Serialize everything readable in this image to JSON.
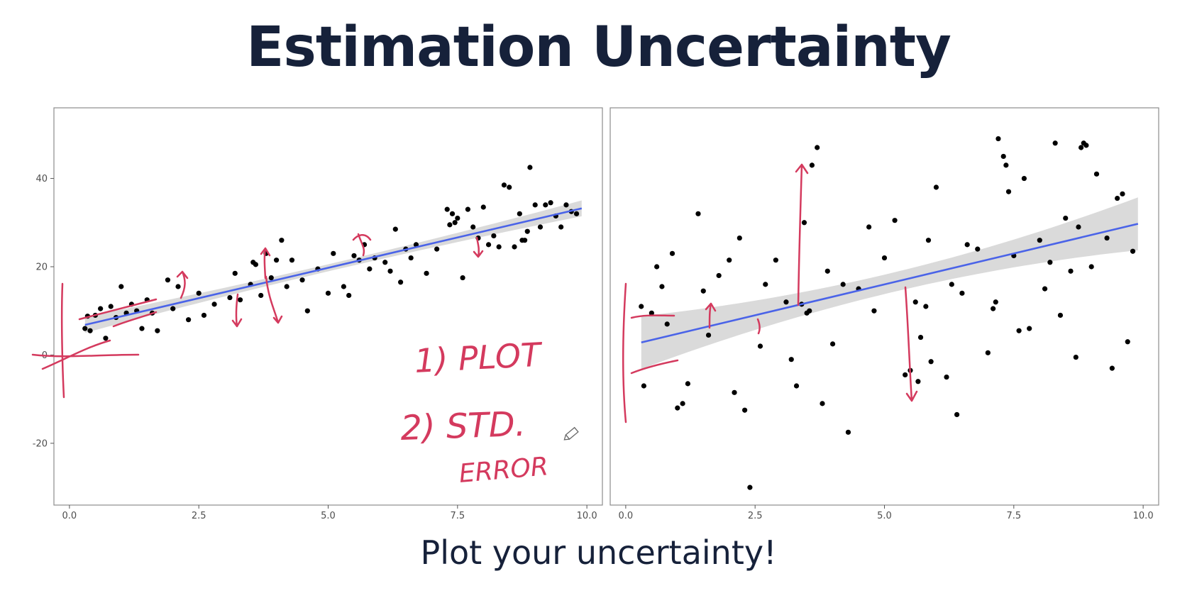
{
  "slide": {
    "title": "Estimation Uncertainty",
    "subtitle": "Plot your uncertainty!"
  },
  "colors": {
    "title": "#16213a",
    "fit_line": "#4a63e8",
    "confidence_band": "#d3d3d3",
    "points": "#000000",
    "ink": "#d43a5e",
    "panel_border": "#8c8c8c"
  },
  "annotations": {
    "ink_step1": "1) PLOT",
    "ink_step2": "2) STD.",
    "ink_step2b": "ERROR"
  },
  "chart_data": [
    {
      "type": "scatter",
      "title": "",
      "xlabel": "",
      "ylabel": "",
      "xlim": [
        -0.3,
        10.3
      ],
      "ylim": [
        -34,
        56
      ],
      "x_ticks": [
        0,
        2.5,
        5,
        7.5,
        10
      ],
      "x_tick_labels": [
        "0.0",
        "2.5",
        "5.0",
        "7.5",
        "10.0"
      ],
      "y_ticks": [
        -20,
        0,
        20,
        40
      ],
      "y_tick_labels": [
        "-20",
        "0",
        "20",
        "40"
      ],
      "grid": false,
      "fit": {
        "intercept": 6.0,
        "slope": 2.75,
        "x_range": [
          0.3,
          9.9
        ],
        "se_low": 0.8,
        "se_high": 1.8
      },
      "points": {
        "x": [
          0.3,
          0.35,
          0.4,
          0.5,
          0.6,
          0.7,
          0.8,
          0.9,
          1.0,
          1.1,
          1.2,
          1.3,
          1.4,
          1.5,
          1.6,
          1.7,
          1.9,
          2.0,
          2.1,
          2.3,
          2.5,
          2.6,
          2.8,
          3.1,
          3.2,
          3.3,
          3.5,
          3.55,
          3.6,
          3.7,
          3.8,
          3.9,
          4.0,
          4.1,
          4.2,
          4.3,
          4.5,
          4.6,
          4.8,
          5.0,
          5.1,
          5.3,
          5.4,
          5.5,
          5.6,
          5.7,
          5.8,
          5.9,
          6.1,
          6.2,
          6.3,
          6.4,
          6.5,
          6.6,
          6.7,
          6.9,
          7.1,
          7.3,
          7.35,
          7.4,
          7.45,
          7.5,
          7.6,
          7.7,
          7.8,
          7.9,
          8.0,
          8.1,
          8.2,
          8.3,
          8.4,
          8.5,
          8.6,
          8.7,
          8.75,
          8.8,
          8.85,
          8.9,
          9.0,
          9.1,
          9.2,
          9.3,
          9.4,
          9.5,
          9.6,
          9.7,
          9.8
        ],
        "y": [
          6,
          8.8,
          5.5,
          9,
          10.5,
          3.8,
          11,
          8.5,
          15.5,
          9.5,
          11.5,
          10,
          6,
          12.5,
          9.5,
          5.5,
          17,
          10.5,
          15.5,
          8,
          14,
          9,
          11.5,
          13,
          18.5,
          12.5,
          16,
          21,
          20.5,
          13.5,
          23,
          17.5,
          21.5,
          26,
          15.5,
          21.5,
          17,
          10,
          19.5,
          14,
          23,
          15.5,
          13.5,
          22.5,
          21.5,
          25,
          19.5,
          22,
          21,
          19,
          28.5,
          16.5,
          24,
          22,
          25,
          18.5,
          24,
          33,
          29.5,
          32,
          30,
          31,
          17.5,
          33,
          29,
          26.5,
          33.5,
          25,
          27,
          24.5,
          38.5,
          38,
          24.5,
          32,
          26,
          26,
          28,
          42.5,
          34,
          29,
          34,
          34.5,
          31.5,
          29,
          34,
          32.5,
          32
        ]
      }
    },
    {
      "type": "scatter",
      "title": "",
      "xlabel": "",
      "ylabel": "",
      "xlim": [
        -0.3,
        10.3
      ],
      "ylim": [
        -34,
        56
      ],
      "x_ticks": [
        0,
        2.5,
        5,
        7.5,
        10
      ],
      "x_tick_labels": [
        "0.0",
        "2.5",
        "5.0",
        "7.5",
        "10.0"
      ],
      "y_ticks": [
        -20,
        0,
        20,
        40
      ],
      "y_tick_labels": [
        "-20",
        "0",
        "20",
        "40"
      ],
      "grid": false,
      "fit": {
        "intercept": 2.0,
        "slope": 2.8,
        "x_range": [
          0.3,
          9.9
        ],
        "se_low": 2.2,
        "se_high": 6.0
      },
      "points": {
        "x": [
          0.3,
          0.35,
          0.5,
          0.6,
          0.7,
          0.8,
          0.9,
          1.0,
          1.1,
          1.2,
          1.4,
          1.5,
          1.6,
          1.8,
          2.0,
          2.1,
          2.2,
          2.3,
          2.4,
          2.6,
          2.7,
          2.9,
          3.1,
          3.2,
          3.3,
          3.4,
          3.45,
          3.5,
          3.55,
          3.6,
          3.7,
          3.8,
          3.9,
          4.0,
          4.2,
          4.3,
          4.5,
          4.7,
          4.8,
          5.0,
          5.2,
          5.4,
          5.5,
          5.6,
          5.65,
          5.7,
          5.8,
          5.85,
          5.9,
          6.0,
          6.2,
          6.3,
          6.4,
          6.5,
          6.6,
          6.8,
          7.0,
          7.1,
          7.15,
          7.2,
          7.3,
          7.35,
          7.4,
          7.5,
          7.6,
          7.7,
          7.8,
          8.0,
          8.1,
          8.2,
          8.3,
          8.4,
          8.5,
          8.6,
          8.7,
          8.75,
          8.8,
          8.85,
          8.9,
          9.0,
          9.1,
          9.3,
          9.4,
          9.5,
          9.6,
          9.7,
          9.8
        ],
        "y": [
          11,
          -7,
          9.5,
          20,
          15.5,
          7,
          23,
          -12,
          -11,
          -6.5,
          32,
          14.5,
          4.5,
          18,
          21.5,
          -8.5,
          26.5,
          -12.5,
          -30,
          2,
          16,
          21.5,
          12,
          -1,
          -7,
          11.5,
          30,
          9.5,
          10,
          43,
          47,
          -11,
          19,
          2.5,
          16,
          -17.5,
          15,
          29,
          10,
          22,
          30.5,
          -4.5,
          -3.5,
          12,
          -6,
          4,
          11,
          26,
          -1.5,
          38,
          -5,
          16,
          -13.5,
          14,
          25,
          24,
          0.5,
          10.5,
          12,
          49,
          45,
          43,
          37,
          22.5,
          5.5,
          40,
          6,
          26,
          15,
          21,
          48,
          9,
          31,
          19,
          -0.5,
          29,
          47,
          48,
          47.5,
          20,
          41,
          26.5,
          -3,
          35.5,
          36.5,
          3,
          23.5
        ]
      }
    }
  ]
}
